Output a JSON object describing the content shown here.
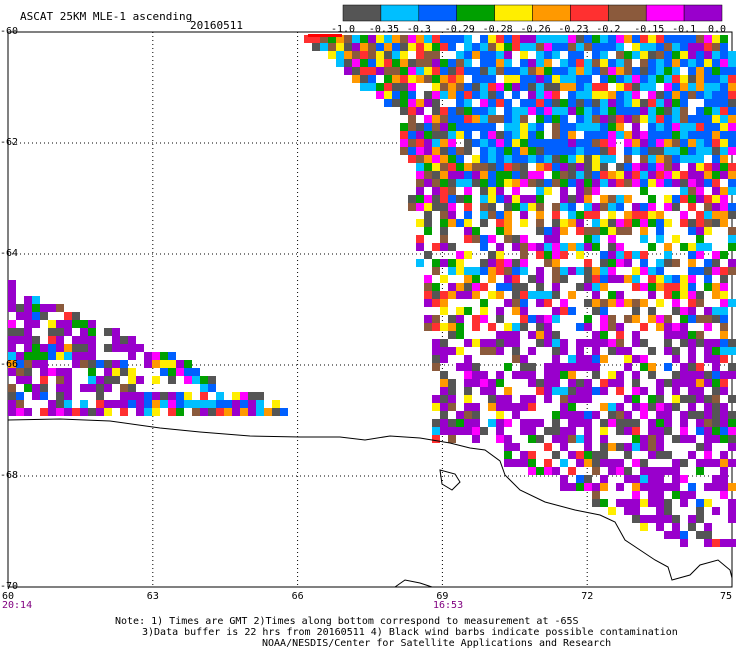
{
  "header": {
    "title": "ASCAT 25KM MLE-1 ascending",
    "date": "20160511"
  },
  "colorbar": {
    "labels": [
      "-1.0",
      "-0.35",
      "-0.3",
      "-0.29",
      "-0.28",
      "-0.26",
      "-0.23",
      "-0.2",
      "-0.15",
      "-0.1",
      "0.0"
    ],
    "colors": [
      "#555555",
      "#00bfff",
      "#0060ff",
      "#00a000",
      "#ffee00",
      "#ff9900",
      "#ff3030",
      "#8b5a3c",
      "#ff00ff",
      "#9900cc"
    ]
  },
  "map": {
    "lat_labels": [
      "-60",
      "-62",
      "-64",
      "-66",
      "-68",
      "-70"
    ],
    "lon_labels": [
      "60",
      "63",
      "66",
      "69",
      "72",
      "75"
    ],
    "time_labels": [
      "20:14",
      "16:53"
    ]
  },
  "notes": {
    "line1": "Note: 1) Times are GMT 2)Times along bottom correspond to measurement at -65S",
    "line2": "3)Data buffer is 22 hrs from 20160511 4) Black wind barbs indicate possible contamination",
    "line3": "NOAA/NESDIS/Center for Satellite Applications and Research"
  }
}
